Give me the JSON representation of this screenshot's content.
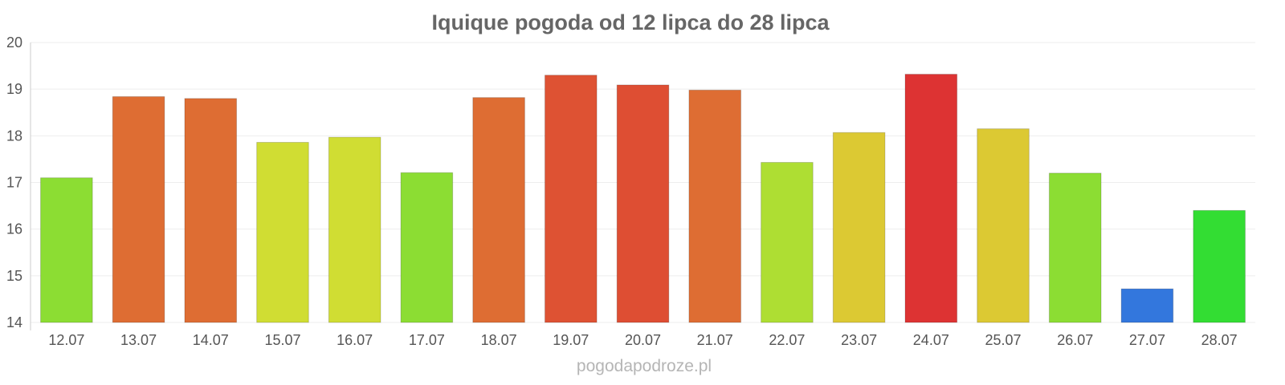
{
  "chart_data": {
    "type": "bar",
    "title": "Iquique pogoda od 12 lipca do 28 lipca",
    "categories": [
      "12.07",
      "13.07",
      "14.07",
      "15.07",
      "16.07",
      "17.07",
      "18.07",
      "19.07",
      "20.07",
      "21.07",
      "22.07",
      "23.07",
      "24.07",
      "25.07",
      "26.07",
      "27.07",
      "28.07"
    ],
    "values": [
      17.1,
      18.84,
      18.8,
      17.86,
      17.97,
      17.21,
      18.82,
      19.3,
      19.09,
      18.98,
      17.43,
      18.07,
      19.32,
      18.15,
      17.2,
      14.72,
      16.4
    ],
    "colors": [
      "#8cdd33",
      "#de6d33",
      "#de6d33",
      "#d0dd33",
      "#d0dd33",
      "#8cdd33",
      "#de6d33",
      "#de5233",
      "#de4e33",
      "#de6d33",
      "#aede33",
      "#dcc933",
      "#dd3333",
      "#dcc933",
      "#8cdd33",
      "#3377dd",
      "#33dd33"
    ],
    "ylim": [
      14,
      20
    ],
    "yticks": [
      "14",
      "15",
      "16",
      "17",
      "18",
      "19",
      "20"
    ],
    "grid": true,
    "xlabel": "",
    "ylabel": ""
  },
  "credit": "pogodapodroze.pl"
}
